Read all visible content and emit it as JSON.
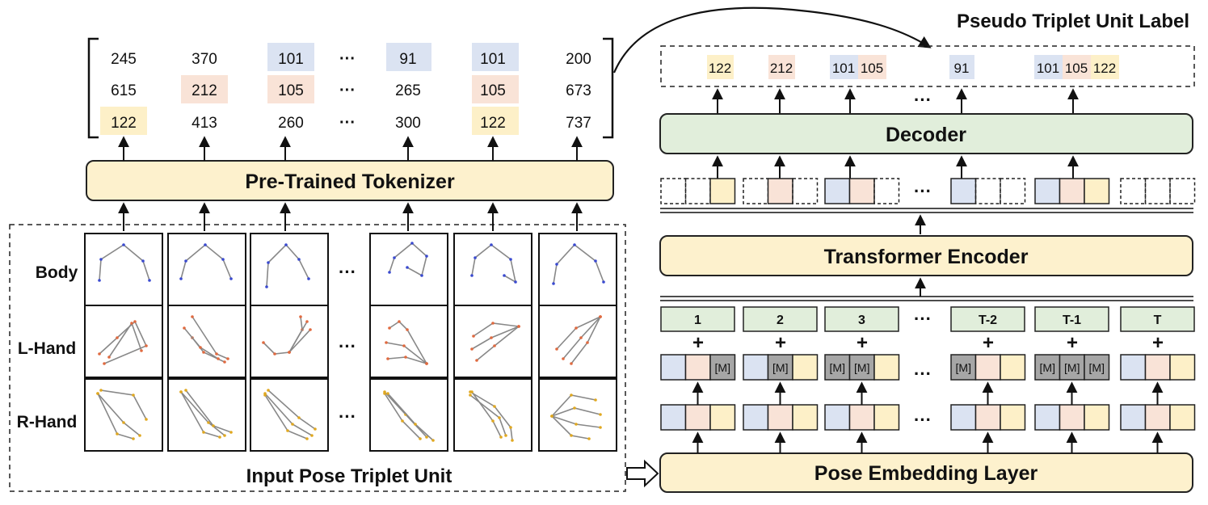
{
  "title": "Pseudo Triplet Unit Label",
  "colors": {
    "body": "#dbe3f2",
    "lhand": "#f9e3d7",
    "rhand": "#fdf0c8",
    "mask": "#a6a6a6",
    "block_yellow": "#fdf1cd",
    "block_green": "#e1eedb",
    "stroke": "#222222"
  },
  "tokenizer": {
    "label": "Pre-Trained Tokenizer",
    "rows": [
      [
        "245",
        "370",
        "101",
        "91",
        "101",
        "200"
      ],
      [
        "615",
        "212",
        "105",
        "265",
        "105",
        "673"
      ],
      [
        "122",
        "413",
        "260",
        "300",
        "122",
        "737"
      ]
    ],
    "ellipsis": "···"
  },
  "input": {
    "label": "Input Pose Triplet Unit",
    "row_labels": [
      "Body",
      "L-Hand",
      "R-Hand"
    ],
    "ellipsis": "···"
  },
  "decoder": {
    "label": "Decoder"
  },
  "encoder": {
    "label": "Transformer Encoder"
  },
  "embedding": {
    "label": "Pose Embedding Layer"
  },
  "pseudo_labels": [
    "122",
    "212",
    "101",
    "105",
    "91",
    "101",
    "105",
    "122"
  ],
  "positions": [
    "1",
    "2",
    "3",
    "T-2",
    "T-1",
    "T"
  ],
  "mask_token": "[M]",
  "ellipsis": "···",
  "plus": "+"
}
